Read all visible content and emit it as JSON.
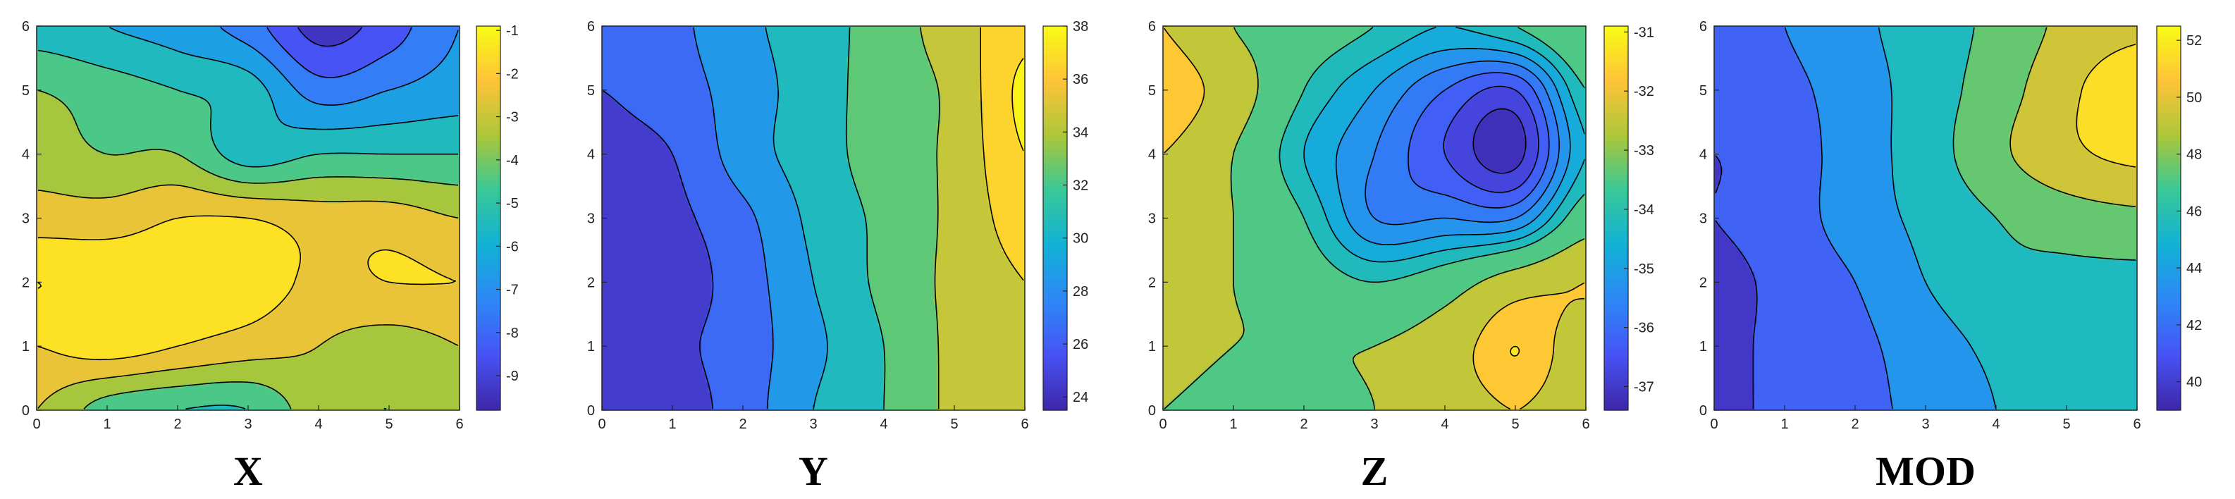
{
  "chart_data": [
    {
      "type": "heatmap",
      "title": "X",
      "xlim": [
        0,
        6
      ],
      "ylim": [
        0,
        6
      ],
      "xticks": [
        "0",
        "1",
        "2",
        "3",
        "4",
        "5",
        "6"
      ],
      "yticks": [
        "0",
        "1",
        "2",
        "3",
        "4",
        "5",
        "6"
      ],
      "colorbar": {
        "range": [
          -9.8,
          -0.9
        ],
        "ticks": [
          "-9",
          "-8",
          "-7",
          "-6",
          "-5",
          "-4",
          "-3",
          "-2",
          "-1"
        ]
      },
      "levels": [
        -9,
        -8,
        -7,
        -6,
        -5,
        -4,
        -3,
        -2,
        -1
      ],
      "z_samples": {
        "x": [
          0,
          1,
          2,
          3,
          4,
          5,
          6
        ],
        "y": [
          6,
          5,
          4,
          3,
          2,
          1,
          0
        ],
        "values": [
          [
            -5.5,
            -6.0,
            -6.5,
            -7.5,
            -9.4,
            -8.5,
            -7.0
          ],
          [
            -4.0,
            -4.5,
            -5.0,
            -5.5,
            -7.5,
            -7.0,
            -6.5
          ],
          [
            -3.5,
            -4.0,
            -4.0,
            -5.5,
            -5.0,
            -5.0,
            -5.0
          ],
          [
            -2.5,
            -2.5,
            -2.0,
            -2.0,
            -2.5,
            -2.5,
            -3.0
          ],
          [
            -1.0,
            -1.2,
            -1.5,
            -1.5,
            -2.2,
            -2.0,
            -2.0
          ],
          [
            -2.0,
            -1.5,
            -2.0,
            -2.5,
            -3.0,
            -3.5,
            -3.0
          ],
          [
            -3.0,
            -4.5,
            -5.0,
            -5.0,
            -3.5,
            -4.0,
            -3.0
          ]
        ]
      },
      "colormap": "parula"
    },
    {
      "type": "heatmap",
      "title": "Y",
      "xlim": [
        0,
        6
      ],
      "ylim": [
        0,
        6
      ],
      "xticks": [
        "0",
        "1",
        "2",
        "3",
        "4",
        "5",
        "6"
      ],
      "yticks": [
        "0",
        "1",
        "2",
        "3",
        "4",
        "5",
        "6"
      ],
      "colorbar": {
        "range": [
          23.5,
          38
        ],
        "ticks": [
          "24",
          "26",
          "28",
          "30",
          "32",
          "34",
          "36",
          "38"
        ]
      },
      "levels": [
        25.5,
        27.5,
        29.5,
        31.5,
        33.5,
        35.5,
        37.5
      ],
      "z_samples": {
        "x": [
          0,
          1,
          2,
          3,
          4,
          5,
          6
        ],
        "y": [
          6,
          5,
          4,
          3,
          2,
          1,
          0
        ],
        "values": [
          [
            26.5,
            27.0,
            29.0,
            30.5,
            32.5,
            34.5,
            37.0
          ],
          [
            25.5,
            26.5,
            28.5,
            30.5,
            32.5,
            34.0,
            38.0
          ],
          [
            25.0,
            25.5,
            28.5,
            30.5,
            32.5,
            34.0,
            37.5
          ],
          [
            24.5,
            25.0,
            27.0,
            30.0,
            32.0,
            34.0,
            36.5
          ],
          [
            24.0,
            24.5,
            26.5,
            29.5,
            32.0,
            34.0,
            35.5
          ],
          [
            24.0,
            25.0,
            26.5,
            29.0,
            31.5,
            34.0,
            35.5
          ],
          [
            24.0,
            24.5,
            26.5,
            29.5,
            31.5,
            34.0,
            35.5
          ]
        ]
      },
      "colormap": "parula"
    },
    {
      "type": "heatmap",
      "title": "Z",
      "xlim": [
        0,
        6
      ],
      "ylim": [
        0,
        6
      ],
      "xticks": [
        "0",
        "1",
        "2",
        "3",
        "4",
        "5",
        "6"
      ],
      "yticks": [
        "0",
        "1",
        "2",
        "3",
        "4",
        "5",
        "6"
      ],
      "colorbar": {
        "range": [
          -37.4,
          -30.9
        ],
        "ticks": [
          "-37",
          "-36",
          "-35",
          "-34",
          "-33",
          "-32",
          "-31"
        ]
      },
      "levels": [
        -37,
        -36.5,
        -36,
        -35.5,
        -35,
        -34.5,
        -34,
        -33,
        -32,
        -31.5
      ],
      "z_samples": {
        "x": [
          0,
          1,
          2,
          3,
          4,
          5,
          6
        ],
        "y": [
          6,
          5,
          4,
          3,
          2,
          1,
          0
        ],
        "values": [
          [
            -32.0,
            -33.0,
            -33.5,
            -34.0,
            -34.5,
            -34.0,
            -33.0
          ],
          [
            -31.5,
            -32.5,
            -34.0,
            -35.0,
            -36.0,
            -36.5,
            -34.0
          ],
          [
            -32.0,
            -33.0,
            -34.5,
            -35.5,
            -36.5,
            -37.2,
            -34.5
          ],
          [
            -32.5,
            -33.0,
            -34.0,
            -35.5,
            -35.5,
            -35.5,
            -33.5
          ],
          [
            -32.5,
            -33.0,
            -33.5,
            -34.0,
            -33.5,
            -32.5,
            -32.0
          ],
          [
            -32.5,
            -33.0,
            -33.0,
            -33.0,
            -32.5,
            -31.5,
            -32.5
          ],
          [
            -33.0,
            -33.5,
            -33.5,
            -33.0,
            -32.5,
            -32.0,
            -32.5
          ]
        ]
      },
      "colormap": "parula"
    },
    {
      "type": "heatmap",
      "title": "MOD",
      "xlim": [
        0,
        6
      ],
      "ylim": [
        0,
        6
      ],
      "xticks": [
        "0",
        "1",
        "2",
        "3",
        "4",
        "5",
        "6"
      ],
      "yticks": [
        "0",
        "1",
        "2",
        "3",
        "4",
        "5",
        "6"
      ],
      "colorbar": {
        "range": [
          39,
          52.5
        ],
        "ticks": [
          "40",
          "42",
          "44",
          "46",
          "48",
          "50",
          "52"
        ]
      },
      "levels": [
        40.5,
        42.5,
        44.5,
        46.5,
        48.5,
        50.5
      ],
      "z_samples": {
        "x": [
          0,
          1,
          2,
          3,
          4,
          5,
          6
        ],
        "y": [
          6,
          5,
          4,
          3,
          2,
          1,
          0
        ],
        "values": [
          [
            42.0,
            42.5,
            44.0,
            45.5,
            47.0,
            49.0,
            50.0
          ],
          [
            41.5,
            42.0,
            43.5,
            45.5,
            47.5,
            50.0,
            52.0
          ],
          [
            40.5,
            41.5,
            43.5,
            45.5,
            48.0,
            50.0,
            51.0
          ],
          [
            40.5,
            41.5,
            43.5,
            45.0,
            46.5,
            47.5,
            48.0
          ],
          [
            40.0,
            41.0,
            42.5,
            44.5,
            46.0,
            46.0,
            46.0
          ],
          [
            40.0,
            41.0,
            42.0,
            43.5,
            45.0,
            46.0,
            46.0
          ],
          [
            40.0,
            41.0,
            42.0,
            43.0,
            44.5,
            46.0,
            46.0
          ]
        ]
      },
      "colormap": "parula"
    }
  ]
}
